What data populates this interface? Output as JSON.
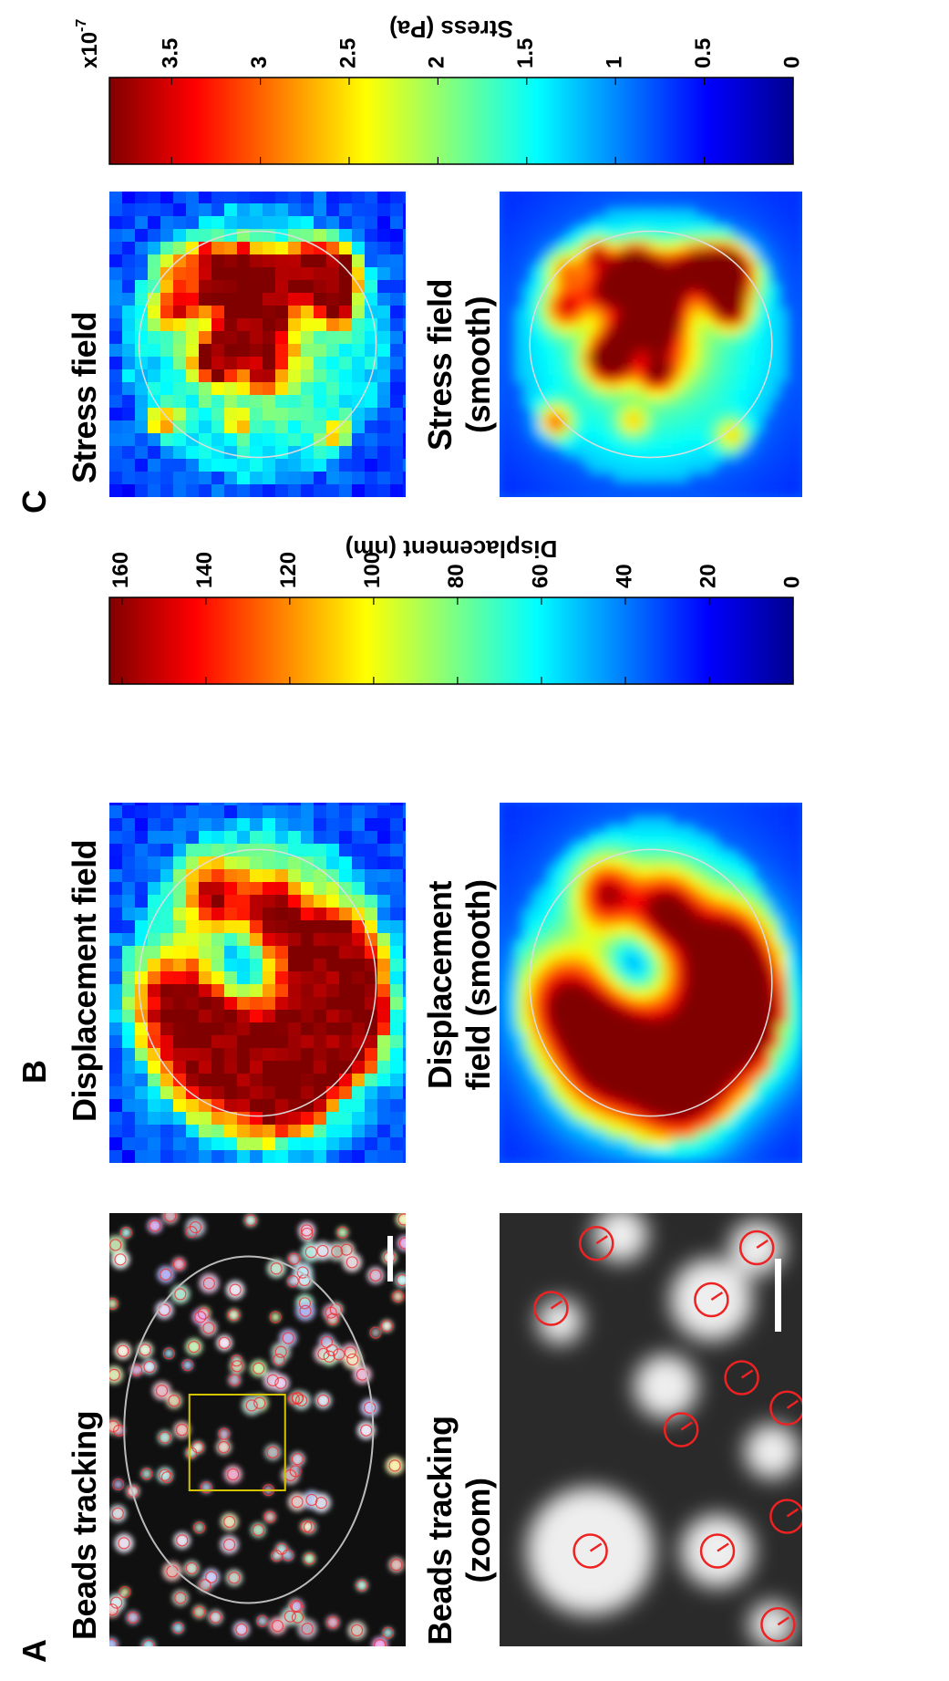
{
  "panels": [
    {
      "letter": "A",
      "captions": [
        [
          "Beads tracking"
        ],
        [
          "Beads tracking",
          "(zoom)"
        ]
      ]
    },
    {
      "letter": "B",
      "captions": [
        [
          "Displacement field"
        ],
        [
          "Displacement",
          "field (smooth)"
        ]
      ]
    },
    {
      "letter": "C",
      "captions": [
        [
          "Stress field"
        ],
        [
          "Stress field",
          "(smooth)"
        ]
      ]
    }
  ],
  "colorbars": [
    {
      "label": "Displacement (nm)",
      "lim": [
        0,
        163
      ],
      "ticks": [
        0,
        20,
        40,
        60,
        80,
        100,
        120,
        140,
        160
      ]
    },
    {
      "label": "Stress (Pa)",
      "lim": [
        0,
        3.85
      ],
      "ticks": [
        0,
        0.5,
        1,
        1.5,
        2,
        2.5,
        3,
        3.5
      ],
      "multiplier": {
        "base": "x10",
        "exponent": "-7"
      }
    }
  ]
}
